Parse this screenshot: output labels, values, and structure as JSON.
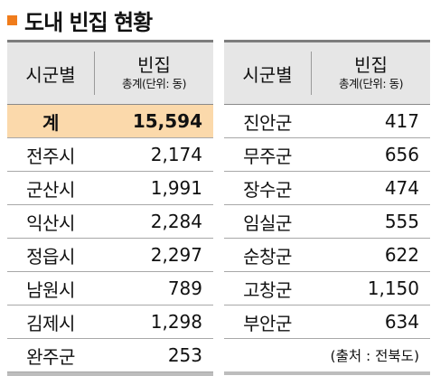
{
  "title": "도내 빈집 현황",
  "colors": {
    "accent": "#f07c1c",
    "total_row_bg": "#fbd9ab",
    "header_bg": "#e6e6e6"
  },
  "header": {
    "col_region": "시군별",
    "col_vacant": "빈집",
    "col_vacant_sub": "총계(단위: 동)"
  },
  "left_table": {
    "total": {
      "name": "계",
      "value": "15,594"
    },
    "rows": [
      {
        "name": "전주시",
        "value": "2,174"
      },
      {
        "name": "군산시",
        "value": "1,991"
      },
      {
        "name": "익산시",
        "value": "2,284"
      },
      {
        "name": "정읍시",
        "value": "2,297"
      },
      {
        "name": "남원시",
        "value": "789"
      },
      {
        "name": "김제시",
        "value": "1,298"
      },
      {
        "name": "완주군",
        "value": "253"
      }
    ]
  },
  "right_table": {
    "rows": [
      {
        "name": "진안군",
        "value": "417"
      },
      {
        "name": "무주군",
        "value": "656"
      },
      {
        "name": "장수군",
        "value": "474"
      },
      {
        "name": "임실군",
        "value": "555"
      },
      {
        "name": "순창군",
        "value": "622"
      },
      {
        "name": "고창군",
        "value": "1,150"
      },
      {
        "name": "부안군",
        "value": "634"
      }
    ],
    "source": "(출처 : 전북도)"
  }
}
